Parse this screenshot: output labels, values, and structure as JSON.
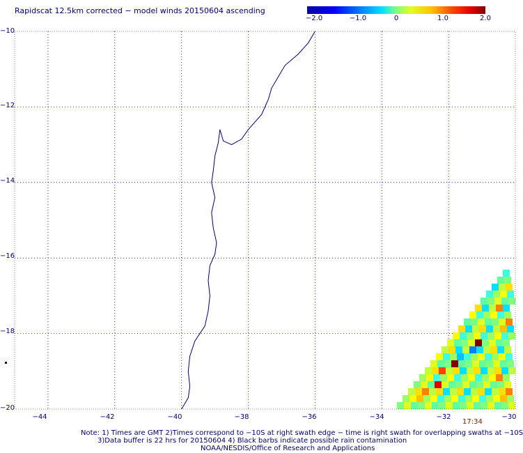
{
  "title": "Rapidscat 12.5km corrected − model winds 20150604 ascending",
  "colorbar": {
    "ticks": [
      "−2.0",
      "−1.0",
      "0",
      "1.0",
      "2.0"
    ],
    "min": -2.0,
    "max": 2.0
  },
  "axes": {
    "lat_labels": [
      "−10",
      "−12",
      "−14",
      "−16",
      "−18",
      "−20"
    ],
    "lon_labels": [
      "−44",
      "−42",
      "−40",
      "−38",
      "−36",
      "−34",
      "−32",
      "−30"
    ],
    "lat_range": [
      -20,
      -10
    ],
    "lon_range": [
      -45,
      -30
    ]
  },
  "swath_time": "17:34",
  "notes": {
    "line1": "Note: 1) Times are GMT 2)Times correspond to −10S at right swath edge − time is right swath for overlapping swaths at −10S",
    "line2": "3)Data buffer is 22 hrs for 20150604 4) Black barbs indicate possible rain contamination",
    "line3": "NOAA/NESDIS/Office of Research and Applications"
  },
  "colors": {
    "coastline": "#000060",
    "grid": "#000080",
    "text": "#000060"
  }
}
